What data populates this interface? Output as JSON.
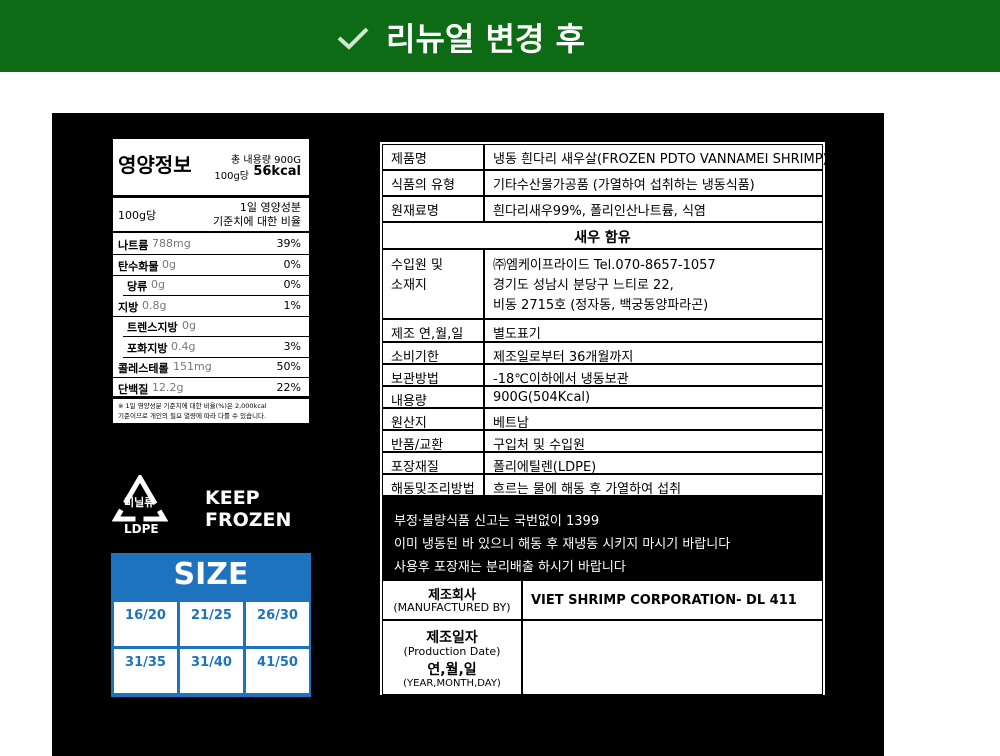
{
  "header": {
    "title": "리뉴얼 변경 후"
  },
  "nutrition": {
    "title": "영양정보",
    "total": "총 내용량 900G",
    "per": "100g당",
    "kcal": "56kcal",
    "basis": "100g당",
    "daily": [
      "1일 영양성분",
      "기준치에 대한 비율"
    ],
    "rows": [
      {
        "name": "나트륨",
        "amount": "788mg",
        "pct": "39%"
      },
      {
        "name": "탄수화물",
        "amount": "0g",
        "pct": "0%"
      },
      {
        "name": "당류",
        "amount": "0g",
        "pct": "0%",
        "sub": true
      },
      {
        "name": "지방",
        "amount": "0.8g",
        "pct": "1%"
      },
      {
        "name": "트렌스지방",
        "amount": "0g",
        "sub": true
      },
      {
        "name": "포화지방",
        "amount": "0.4g",
        "pct": "3%",
        "sub": true
      },
      {
        "name": "콜레스테롤",
        "amount": "151mg",
        "pct": "50%"
      },
      {
        "name": "단백질",
        "amount": "12.2g",
        "pct": "22%"
      }
    ],
    "footnote": [
      "※ 1일 영양성분 기준치에 대한 비율(%)은 2,000kcal",
      "기준이므로 개인의 필요 열량에 따라 다를 수 있습니다."
    ]
  },
  "recycle": {
    "kind": "비닐류",
    "material": "LDPE"
  },
  "keep": [
    "KEEP",
    "FROZEN"
  ],
  "size": {
    "title": "SIZE",
    "cells": [
      [
        "16/20",
        "21/25",
        "26/30"
      ],
      [
        "31/35",
        "31/40",
        "41/50"
      ]
    ]
  },
  "info": [
    {
      "label": "제품명",
      "value": "냉동 흰다리 새우살(FROZEN PDTO VANNAMEI SHRIMP)"
    },
    {
      "label": "식품의 유형",
      "value": "기타수산물가공품 (가열하여 섭취하는 냉동식품)"
    },
    {
      "label": "원재료명",
      "value": "흰다리새우99%, 폴리인산나트륨, 식염"
    },
    {
      "label": [
        "수입원 및",
        "소재지"
      ],
      "value": [
        "㈜엠케이프라이드 Tel.070-8657-1057",
        "경기도 성남시 분당구 느티로 22,",
        "비동 2715호 (정자동, 백궁동양파라곤)"
      ]
    },
    {
      "label": "제조 연,월,일",
      "value": "별도표기"
    },
    {
      "label": "소비기한",
      "value": "제조일로부터 36개월까지"
    },
    {
      "label": "보관방법",
      "value": "-18℃이하에서 냉동보관"
    },
    {
      "label": "내용량",
      "value": "900G(504Kcal)"
    },
    {
      "label": "원산지",
      "value": "베트남"
    },
    {
      "label": "반품/교환",
      "value": "구입처 및 수입원"
    },
    {
      "label": "포장재질",
      "value": "폴리에틸렌(LDPE)"
    },
    {
      "label": "해동및조리방법",
      "value": "흐르는 물에 해동 후 가열하여 섭취"
    }
  ],
  "section": "새우 함유",
  "notices": [
    "부정·불량식품 신고는 국번없이 1399",
    "이미 냉동된 바 있으니 해동 후 재냉동 시키지 마시기 바랍니다",
    "사용후 포장재는 분리배출 하시기 바랍니다"
  ],
  "manufacturer": {
    "label": "제조회사",
    "sub": "(MANUFACTURED BY)",
    "value": "VIET SHRIMP CORPORATION- DL 411"
  },
  "production": {
    "label": "제조일자",
    "sub": "(Production Date)",
    "label2": "연,월,일",
    "sub2": "(YEAR,MONTH,DAY)"
  }
}
